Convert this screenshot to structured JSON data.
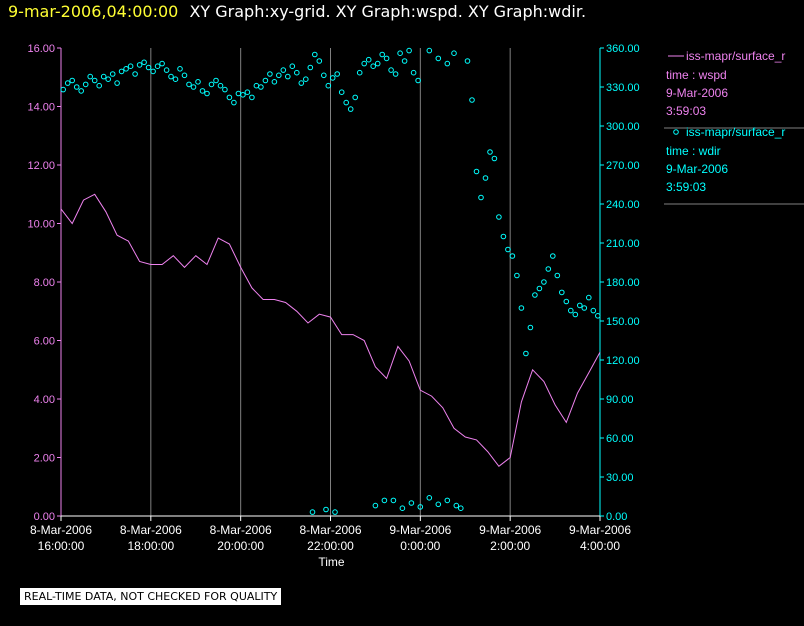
{
  "header": {
    "timestamp": "9-mar-2006,04:00:00",
    "graphs": "XY Graph:xy-grid.  XY Graph:wspd.  XY Graph:wdir."
  },
  "footer": {
    "note": "REAL-TIME DATA, NOT CHECKED FOR QUALITY"
  },
  "chart_data": {
    "type": "line",
    "title": "",
    "xlabel": "Time",
    "x_unit": "hours since 8-Mar-2006 16:00",
    "x_range": [
      0,
      12
    ],
    "x_ticks": [
      {
        "x": 0,
        "date": "8-Mar-2006",
        "time": "16:00:00"
      },
      {
        "x": 2,
        "date": "8-Mar-2006",
        "time": "18:00:00"
      },
      {
        "x": 4,
        "date": "8-Mar-2006",
        "time": "20:00:00"
      },
      {
        "x": 6,
        "date": "8-Mar-2006",
        "time": "22:00:00"
      },
      {
        "x": 8,
        "date": "9-Mar-2006",
        "time": "0:00:00"
      },
      {
        "x": 10,
        "date": "9-Mar-2006",
        "time": "2:00:00"
      },
      {
        "x": 12,
        "date": "9-Mar-2006",
        "time": "4:00:00"
      }
    ],
    "grid": true,
    "y_left": {
      "range": [
        0,
        16
      ],
      "ticks": [
        "0.00",
        "2.00",
        "4.00",
        "6.00",
        "8.00",
        "10.00",
        "12.00",
        "14.00",
        "16.00"
      ]
    },
    "y_right": {
      "range": [
        0,
        360
      ],
      "ticks": [
        "0.00",
        "30.00",
        "60.00",
        "90.00",
        "120.00",
        "150.00",
        "180.00",
        "210.00",
        "240.00",
        "270.00",
        "300.00",
        "330.00",
        "360.00"
      ]
    },
    "legend": [
      {
        "symbol": "line",
        "label": "iss-mapr/surface_r",
        "lines": [
          "time : wspd",
          "9-Mar-2006",
          "3:59:03"
        ],
        "color": "#ee82ee"
      },
      {
        "symbol": "circle",
        "label": "iss-mapr/surface_r",
        "lines": [
          "time : wdir",
          "9-Mar-2006",
          "3:59:03"
        ],
        "color": "#00ffff"
      }
    ],
    "series": [
      {
        "name": "wspd",
        "style": "line",
        "axis": "left",
        "color": "#ee82ee",
        "x": [
          0,
          0.25,
          0.5,
          0.75,
          1,
          1.25,
          1.5,
          1.75,
          2,
          2.25,
          2.5,
          2.75,
          3,
          3.25,
          3.5,
          3.75,
          4,
          4.25,
          4.5,
          4.75,
          5,
          5.25,
          5.5,
          5.75,
          6,
          6.25,
          6.5,
          6.75,
          7,
          7.25,
          7.5,
          7.75,
          8,
          8.25,
          8.5,
          8.75,
          9,
          9.25,
          9.5,
          9.75,
          10,
          10.25,
          10.5,
          10.75,
          11,
          11.25,
          11.5,
          11.75,
          12
        ],
        "y": [
          10.5,
          10.0,
          10.8,
          11.0,
          10.4,
          9.6,
          9.4,
          8.7,
          8.6,
          8.6,
          8.9,
          8.5,
          8.9,
          8.6,
          9.5,
          9.3,
          8.5,
          7.8,
          7.4,
          7.4,
          7.3,
          7.0,
          6.6,
          6.9,
          6.8,
          6.2,
          6.2,
          6.0,
          5.1,
          4.7,
          5.8,
          5.3,
          4.3,
          4.1,
          3.7,
          3.0,
          2.7,
          2.6,
          2.2,
          1.7,
          2.0,
          3.9,
          5.0,
          4.6,
          3.8,
          3.2,
          4.2,
          4.9,
          5.6
        ]
      },
      {
        "name": "wdir",
        "style": "scatter",
        "axis": "right",
        "color": "#00ffff",
        "x": [
          0.05,
          0.15,
          0.25,
          0.35,
          0.45,
          0.55,
          0.65,
          0.75,
          0.85,
          0.95,
          1.05,
          1.15,
          1.25,
          1.35,
          1.45,
          1.55,
          1.65,
          1.75,
          1.85,
          1.95,
          2.05,
          2.15,
          2.25,
          2.35,
          2.45,
          2.55,
          2.65,
          2.75,
          2.85,
          2.95,
          3.05,
          3.15,
          3.25,
          3.35,
          3.45,
          3.55,
          3.65,
          3.75,
          3.85,
          3.95,
          4.05,
          4.15,
          4.25,
          4.35,
          4.45,
          4.55,
          4.65,
          4.75,
          4.85,
          4.95,
          5.05,
          5.15,
          5.25,
          5.35,
          5.45,
          5.55,
          5.65,
          5.75,
          5.85,
          5.95,
          6.05,
          6.15,
          6.25,
          6.35,
          6.45,
          6.55,
          6.65,
          6.75,
          6.85,
          6.95,
          7.05,
          7.15,
          7.25,
          7.35,
          7.45,
          7.55,
          7.65,
          7.75,
          7.85,
          7.95,
          8.2,
          8.4,
          8.6,
          8.75,
          9.05,
          9.15,
          9.25,
          9.35,
          9.45,
          9.55,
          9.65,
          9.75,
          9.85,
          9.95,
          10.05,
          10.15,
          10.25,
          10.35,
          10.45,
          10.55,
          10.65,
          10.75,
          10.85,
          10.95,
          11.05,
          11.15,
          11.25,
          11.35,
          11.45,
          11.55,
          11.65,
          11.75,
          11.85,
          11.95,
          5.6,
          5.9,
          6.1,
          7.0,
          7.2,
          7.4,
          7.6,
          7.8,
          8.0,
          8.2,
          8.4,
          8.6,
          8.8,
          8.9
        ],
        "y": [
          328,
          333,
          335,
          330,
          327,
          332,
          338,
          335,
          331,
          338,
          336,
          340,
          333,
          342,
          344,
          346,
          340,
          347,
          349,
          345,
          342,
          346,
          348,
          343,
          338,
          336,
          344,
          339,
          332,
          330,
          334,
          327,
          325,
          332,
          335,
          331,
          328,
          322,
          318,
          325,
          324,
          326,
          322,
          331,
          330,
          335,
          340,
          334,
          339,
          343,
          338,
          346,
          341,
          333,
          336,
          345,
          355,
          350,
          339,
          331,
          337,
          340,
          326,
          318,
          313,
          322,
          341,
          348,
          351,
          346,
          348,
          355,
          352,
          343,
          340,
          356,
          350,
          358,
          341,
          335,
          358,
          352,
          348,
          356,
          350,
          320,
          265,
          245,
          260,
          280,
          275,
          230,
          215,
          205,
          200,
          185,
          160,
          125,
          145,
          170,
          175,
          180,
          190,
          200,
          185,
          172,
          165,
          158,
          155,
          162,
          160,
          168,
          158,
          154,
          3,
          5,
          3,
          8,
          12,
          12,
          6,
          10,
          7,
          14,
          9,
          12,
          8,
          6
        ]
      }
    ]
  }
}
